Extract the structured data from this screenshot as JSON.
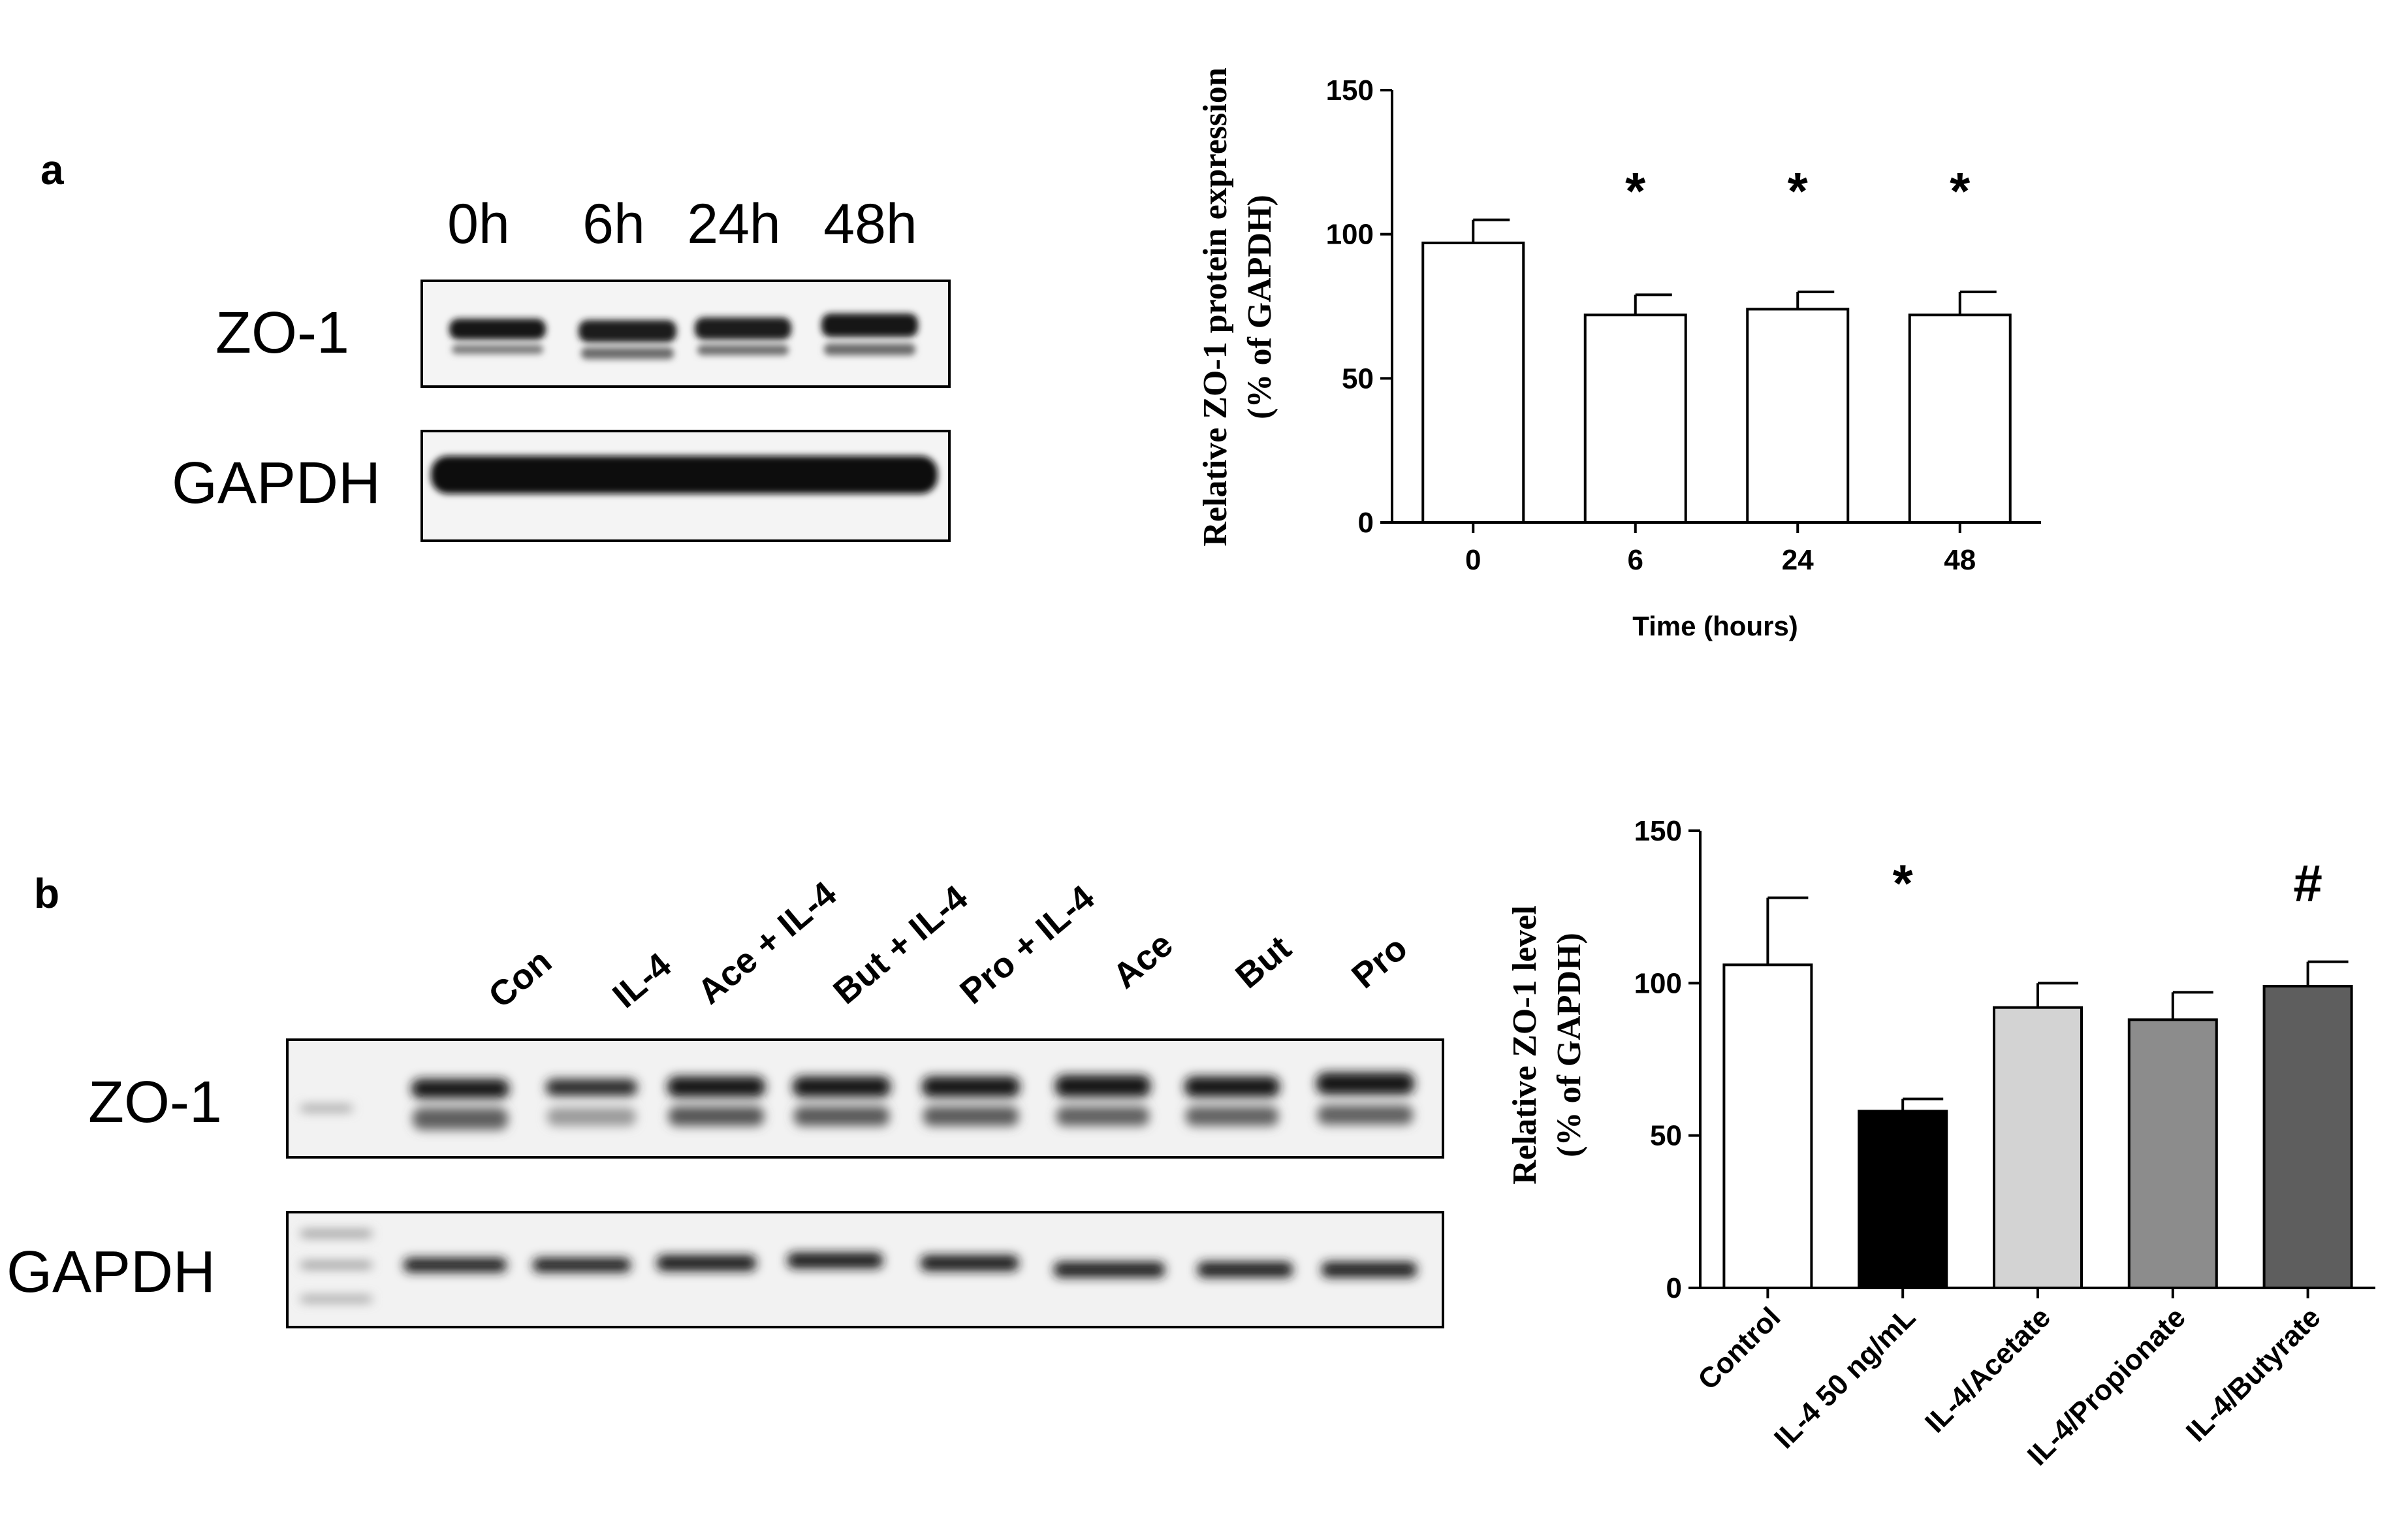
{
  "panels": {
    "a": {
      "label": "a",
      "blot": {
        "lanes": [
          "0h",
          "6h",
          "24h",
          "48h"
        ],
        "rows": [
          "ZO-1",
          "GAPDH"
        ]
      }
    },
    "b": {
      "label": "b",
      "blot": {
        "lanes": [
          "Con",
          "IL-4",
          "Ace + IL-4",
          "But + IL-4",
          "Pro + IL-4",
          "Ace",
          "But",
          "Pro"
        ],
        "rows": [
          "ZO-1",
          "GAPDH"
        ]
      }
    }
  },
  "chart_data": [
    {
      "type": "bar",
      "panel": "a",
      "categories": [
        "0",
        "6",
        "24",
        "48"
      ],
      "values": [
        97,
        72,
        74,
        72
      ],
      "errors": [
        8,
        7,
        6,
        8
      ],
      "colors": [
        "#ffffff",
        "#ffffff",
        "#ffffff",
        "#ffffff"
      ],
      "annotations": [
        "",
        "*",
        "*",
        "*"
      ],
      "xlabel": "Time (hours)",
      "ylabel": [
        "Relative ZO-1 protein expression",
        "(% of GAPDH)"
      ],
      "ylim": [
        0,
        150
      ],
      "yticks": [
        0,
        50,
        100,
        150
      ],
      "grid": false,
      "legend": "none"
    },
    {
      "type": "bar",
      "panel": "b",
      "categories": [
        "Control",
        "IL-4 50 ng/mL",
        "IL-4/Acetate",
        "IL-4/Propionate",
        "IL-4/Butyrate"
      ],
      "values": [
        106,
        58,
        92,
        88,
        99
      ],
      "errors": [
        22,
        4,
        8,
        9,
        8
      ],
      "colors": [
        "#ffffff",
        "#000000",
        "#d3d3d3",
        "#8c8c8c",
        "#5e5e5e"
      ],
      "annotations": [
        "",
        "*",
        "",
        "",
        "#"
      ],
      "xlabel": "",
      "ylabel": [
        "Relative ZO-1 level",
        "(% of GAPDH)"
      ],
      "ylim": [
        0,
        150
      ],
      "yticks": [
        0,
        50,
        100,
        150
      ],
      "grid": false,
      "legend": "none"
    }
  ]
}
